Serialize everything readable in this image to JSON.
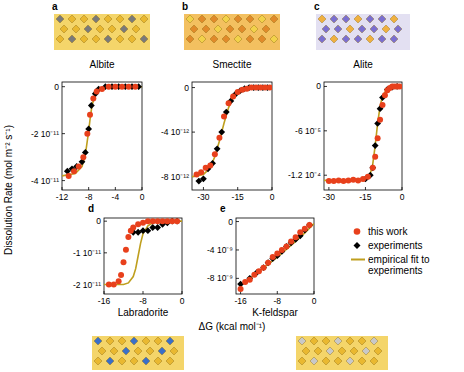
{
  "figure": {
    "xlabel": "ΔG (kcal mol⁻¹)",
    "ylabel": "Dissolution Rate (mol m⁻² s⁻¹)"
  },
  "chart_data": [
    {
      "type": "scatter",
      "panel": "a",
      "title": "Albite",
      "xlim": [
        -12,
        0
      ],
      "xticks": [
        -12,
        -8,
        -4,
        0
      ],
      "ylim": [
        -4.4e-11,
        2e-12
      ],
      "yticks": [
        0,
        {
          "value": -2e-11,
          "label": "-2 10⁻¹¹"
        },
        {
          "value": -4e-11,
          "label": "-4 10⁻¹¹"
        }
      ],
      "series": [
        {
          "name": "this work",
          "type": "scatter",
          "color": "#e8401c",
          "marker": "circle",
          "x": [
            -11,
            -10.2,
            -9.5,
            -8.8,
            -8.2,
            -7.8,
            -7.3,
            -6.8,
            -6,
            -5,
            -4,
            -3,
            -2,
            -1
          ],
          "values": [
            -3.8e-11,
            -3.6e-11,
            -3.4e-11,
            -3e-11,
            -2e-11,
            -1.2e-11,
            -5e-12,
            -2e-12,
            -1e-12,
            0,
            0,
            0,
            0,
            0
          ]
        },
        {
          "name": "experiments",
          "type": "scatter",
          "color": "#000000",
          "marker": "diamond",
          "x": [
            -11.2,
            -10.5,
            -9.8,
            -9,
            -8.5,
            -8,
            -7.6,
            -7,
            -6.5,
            -5.5,
            -4.5,
            -3.5,
            -2.5,
            -1.5,
            -0.5
          ],
          "values": [
            -3.6e-11,
            -3.5e-11,
            -3.4e-11,
            -3.2e-11,
            -2.8e-11,
            -1.8e-11,
            -8e-12,
            -3e-12,
            -1e-12,
            0,
            0,
            0,
            0,
            0,
            0
          ]
        },
        {
          "name": "empirical fit to experiments",
          "type": "line",
          "color": "#bf9f1e",
          "line_style": "solid",
          "x": [
            -12,
            -10,
            -9,
            -8.5,
            -8.2,
            -8,
            -7.8,
            -7.5,
            -7,
            -6,
            -4,
            0
          ],
          "values": [
            -3.8e-11,
            -3.7e-11,
            -3.4e-11,
            -2.9e-11,
            -2.3e-11,
            -1.9e-11,
            -1.4e-11,
            -8e-12,
            -3e-12,
            -5e-13,
            0,
            0
          ]
        }
      ]
    },
    {
      "type": "scatter",
      "panel": "b",
      "title": "Smectite",
      "xlim": [
        -35,
        0
      ],
      "xticks": [
        -30,
        -15,
        0
      ],
      "ylim": [
        -9.2e-12,
        5e-13
      ],
      "yticks": [
        0,
        {
          "value": -4e-12,
          "label": "-4 10⁻¹²"
        },
        {
          "value": -8e-12,
          "label": "-8 10⁻¹²"
        }
      ],
      "series": [
        {
          "name": "this work",
          "type": "scatter",
          "color": "#e8401c",
          "marker": "circle",
          "x": [
            -33,
            -31,
            -29,
            -27,
            -25,
            -23,
            -21,
            -19,
            -17,
            -15,
            -13,
            -11,
            -9,
            -7,
            -5,
            -3,
            -1
          ],
          "values": [
            -7.8e-12,
            -7.6e-12,
            -7.2e-12,
            -7e-12,
            -6e-12,
            -4.5e-12,
            -2.6e-12,
            -1.4e-12,
            -8e-13,
            -4e-13,
            -2e-13,
            -1e-13,
            0,
            0,
            0,
            0,
            0
          ]
        },
        {
          "name": "experiments",
          "type": "scatter",
          "color": "#000000",
          "marker": "diamond",
          "x": [
            -32,
            -30,
            -28,
            -26,
            -24,
            -22,
            -20,
            -18,
            -16,
            -14,
            -12,
            -10,
            -8,
            -6,
            -4,
            -2
          ],
          "values": [
            -8.4e-12,
            -8.2e-12,
            -7.3e-12,
            -6.8e-12,
            -5.5e-12,
            -4e-12,
            -2.2e-12,
            -1.2e-12,
            -6e-13,
            -3e-13,
            -1e-13,
            0,
            0,
            0,
            0,
            0
          ]
        },
        {
          "name": "empirical fit to experiments",
          "type": "line",
          "color": "#bf9f1e",
          "line_style": "solid",
          "x": [
            -35,
            -30,
            -27,
            -25,
            -23,
            -22,
            -21,
            -19,
            -17,
            -14,
            -10,
            0
          ],
          "values": [
            -8e-12,
            -7.8e-12,
            -7.2e-12,
            -6.2e-12,
            -4.8e-12,
            -4e-12,
            -3.2e-12,
            -1.8e-12,
            -9e-13,
            -3e-13,
            -5e-14,
            0
          ]
        }
      ]
    },
    {
      "type": "scatter",
      "panel": "c",
      "title": "Alite",
      "xlim": [
        -32,
        0
      ],
      "xticks": [
        -30,
        -15,
        0
      ],
      "ylim": [
        -0.00014,
        6e-06
      ],
      "yticks": [
        0,
        {
          "value": -6e-05,
          "label": "-6 10⁻⁵"
        },
        {
          "value": -0.00012,
          "label": "-1.2 10⁻⁴"
        }
      ],
      "series": [
        {
          "name": "this work",
          "type": "scatter",
          "color": "#e8401c",
          "marker": "circle",
          "x": [
            -30,
            -28,
            -26,
            -24,
            -22,
            -20,
            -18,
            -16,
            -14,
            -12,
            -11,
            -10,
            -9,
            -8,
            -7,
            -6,
            -5,
            -4,
            -3,
            -2,
            -1
          ],
          "values": [
            -0.000128,
            -0.000128,
            -0.000127,
            -0.000128,
            -0.000127,
            -0.000126,
            -0.000127,
            -0.000125,
            -0.000122,
            -0.00011,
            -9.5e-05,
            -7e-05,
            -4.5e-05,
            -2.5e-05,
            -1.2e-05,
            -5e-06,
            -2e-06,
            0,
            0,
            0,
            0
          ]
        },
        {
          "name": "experiments",
          "type": "scatter",
          "color": "#000000",
          "marker": "diamond",
          "x": [
            -15,
            -13,
            -12,
            -11,
            -10,
            -9,
            -8,
            -6,
            -4,
            -2
          ],
          "values": [
            -0.000125,
            -0.00012,
            -0.00011,
            -8e-05,
            -5e-05,
            -3e-05,
            -1.5e-05,
            -4e-06,
            -1e-06,
            0
          ]
        },
        {
          "name": "empirical fit to experiments",
          "type": "line",
          "color": "#bf9f1e",
          "line_style": "solid",
          "x": [
            -32,
            -16,
            -14,
            -13,
            -12,
            -11,
            -10,
            -9,
            -8,
            -6,
            -3,
            0
          ],
          "values": [
            -0.000127,
            -0.000127,
            -0.000124,
            -0.000118,
            -0.000105,
            -8e-05,
            -5e-05,
            -2.7e-05,
            -1.3e-05,
            -3e-06,
            0,
            0
          ]
        }
      ]
    },
    {
      "type": "scatter",
      "panel": "d",
      "title": "Labradorite",
      "xlim": [
        -16,
        0
      ],
      "xticks": [
        -16,
        -8,
        0
      ],
      "ylim": [
        -2.3e-11,
        1e-12
      ],
      "yticks": [
        0,
        {
          "value": -1e-11,
          "label": "-1 10⁻¹¹"
        },
        {
          "value": -2e-11,
          "label": "-2 10⁻¹¹"
        }
      ],
      "series": [
        {
          "name": "this work",
          "type": "scatter",
          "color": "#e8401c",
          "marker": "circle",
          "x": [
            -15,
            -14,
            -13,
            -12.5,
            -12,
            -11.5,
            -11,
            -10.5,
            -10,
            -9,
            -8,
            -7,
            -6,
            -5,
            -4,
            -3,
            -2,
            -1
          ],
          "values": [
            -2e-11,
            -2e-11,
            -1.9e-11,
            -1.7e-11,
            -1.3e-11,
            -9e-12,
            -5e-12,
            -3e-12,
            -2e-12,
            -1e-12,
            -5e-13,
            0,
            0,
            0,
            0,
            0,
            0,
            0
          ]
        },
        {
          "name": "experiments",
          "type": "scatter",
          "color": "#000000",
          "marker": "diamond",
          "x": [
            -10,
            -9,
            -8,
            -7,
            -6,
            -5,
            -4,
            -3,
            -2,
            -1
          ],
          "values": [
            -3.5e-12,
            -3.5e-12,
            -3e-12,
            -3e-12,
            -2e-12,
            -2e-12,
            -1e-12,
            -5e-13,
            0,
            0
          ]
        },
        {
          "name": "empirical fit to experiments",
          "type": "line",
          "color": "#bf9f1e",
          "line_style": "solid",
          "x": [
            -16,
            -12,
            -11,
            -10,
            -9.5,
            -9,
            -8.5,
            -8,
            -7,
            -6,
            -4,
            0
          ],
          "values": [
            -2e-11,
            -2e-11,
            -1.95e-11,
            -1.75e-11,
            -1.5e-11,
            -1.1e-11,
            -7e-12,
            -4e-12,
            -1.5e-12,
            -5e-13,
            0,
            0
          ]
        }
      ]
    },
    {
      "type": "scatter",
      "panel": "e",
      "title": "K-feldspar",
      "xlim": [
        -17,
        0
      ],
      "xticks": [
        -16,
        -8,
        0
      ],
      "ylim": [
        -1.02e-08,
        5e-10
      ],
      "yticks": [
        0,
        {
          "value": -4e-09,
          "label": "-4 10⁻⁹"
        },
        {
          "value": -8e-09,
          "label": "-8 10⁻⁹"
        }
      ],
      "series": [
        {
          "name": "this work",
          "type": "scatter",
          "color": "#e8401c",
          "marker": "circle",
          "x": [
            -16,
            -15,
            -14,
            -13,
            -12,
            -11,
            -10,
            -9,
            -8,
            -7,
            -6,
            -5,
            -4,
            -3,
            -2,
            -1
          ],
          "values": [
            -9.5e-09,
            -8.5e-09,
            -8.2e-09,
            -7.5e-09,
            -7e-09,
            -6.5e-09,
            -5.8e-09,
            -5e-09,
            -4.5e-09,
            -4e-09,
            -3.5e-09,
            -2.8e-09,
            -2.2e-09,
            -1.5e-09,
            -1e-09,
            -5e-10
          ]
        },
        {
          "name": "experiments",
          "type": "scatter",
          "color": "#000000",
          "marker": "diamond",
          "x": [
            -16,
            -14,
            -12.5,
            -11,
            -10,
            -9,
            -8,
            -7,
            -6,
            -5,
            -4,
            -3,
            -2,
            -1
          ],
          "values": [
            -8.8e-09,
            -8e-09,
            -7.2e-09,
            -6.5e-09,
            -5.8e-09,
            -5.2e-09,
            -4.8e-09,
            -4.2e-09,
            -3.5e-09,
            -3e-09,
            -2.5e-09,
            -2e-09,
            -1.2e-09,
            -5e-10
          ]
        },
        {
          "name": "empirical fit to experiments",
          "type": "line",
          "color": "#bf9f1e",
          "line_style": "solid",
          "x": [
            -16,
            -12,
            -8,
            -4,
            -2,
            0
          ],
          "values": [
            -9e-09,
            -7e-09,
            -5e-09,
            -2.8e-09,
            -1.6e-09,
            -3e-10
          ]
        }
      ]
    }
  ]
}
